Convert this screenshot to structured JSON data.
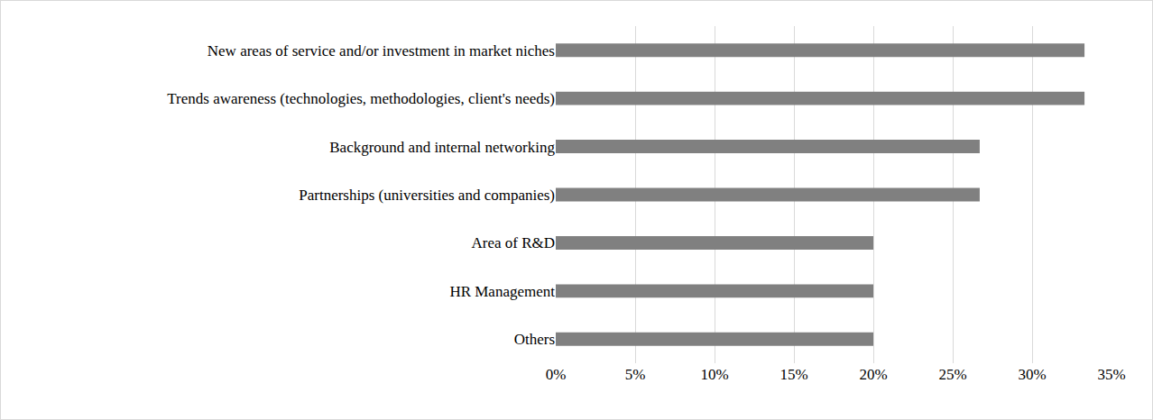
{
  "chart_data": {
    "type": "bar",
    "orientation": "horizontal",
    "categories": [
      "New areas of service and/or investment in market niches",
      "Trends awareness (technologies, methodologies, client's needs)",
      "Background and internal networking",
      "Partnerships (universities and companies)",
      "Area of R&D",
      "HR Management",
      "Others"
    ],
    "values": [
      33.3,
      33.3,
      26.7,
      26.7,
      20,
      20,
      20
    ],
    "color": "#808080",
    "xlim": [
      0,
      35
    ],
    "xticks": [
      {
        "value": 0,
        "label": "0%"
      },
      {
        "value": 5,
        "label": "5%"
      },
      {
        "value": 10,
        "label": "10%"
      },
      {
        "value": 15,
        "label": "15%"
      },
      {
        "value": 20,
        "label": "20%"
      },
      {
        "value": 25,
        "label": "25%"
      },
      {
        "value": 30,
        "label": "30%"
      },
      {
        "value": 35,
        "label": "35%"
      }
    ],
    "grid": true
  }
}
